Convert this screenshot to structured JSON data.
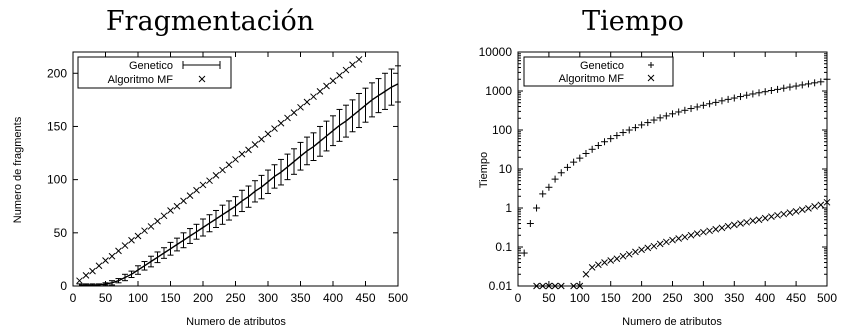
{
  "chart_data": [
    {
      "type": "line",
      "title": "Fragmentación",
      "xlabel": "Numero de atributos",
      "ylabel": "Numero de fragments",
      "xlim": [
        0,
        500
      ],
      "ylim": [
        0,
        220
      ],
      "xticks": [
        "0",
        "50",
        "100",
        "150",
        "200",
        "250",
        "300",
        "350",
        "400",
        "450",
        "500"
      ],
      "yticks": [
        "0",
        "50",
        "100",
        "150",
        "200"
      ],
      "legend": "top-left",
      "grid": false,
      "series": [
        {
          "name": "Genetico",
          "style": "line-with-errorbars",
          "x": [
            10,
            20,
            30,
            40,
            50,
            60,
            70,
            80,
            90,
            100,
            110,
            120,
            130,
            140,
            150,
            160,
            170,
            180,
            190,
            200,
            210,
            220,
            230,
            240,
            250,
            260,
            270,
            280,
            290,
            300,
            310,
            320,
            330,
            340,
            350,
            360,
            370,
            380,
            390,
            400,
            410,
            420,
            430,
            440,
            450,
            460,
            470,
            480,
            490,
            500
          ],
          "y": [
            1,
            1,
            1,
            1,
            2,
            3,
            5,
            8,
            11,
            15,
            19,
            23,
            27,
            31,
            35,
            39,
            43,
            47,
            51,
            55,
            59,
            63,
            67,
            71,
            75,
            80,
            84,
            89,
            93,
            98,
            103,
            107,
            112,
            117,
            122,
            127,
            131,
            136,
            141,
            146,
            151,
            155,
            160,
            165,
            170,
            175,
            179,
            183,
            187,
            190
          ],
          "err": [
            1,
            1,
            1,
            1,
            1,
            2,
            2,
            3,
            3,
            4,
            4,
            5,
            5,
            5,
            6,
            6,
            7,
            7,
            7,
            8,
            8,
            8,
            9,
            9,
            9,
            10,
            10,
            10,
            11,
            11,
            11,
            12,
            12,
            12,
            13,
            13,
            13,
            14,
            14,
            14,
            15,
            15,
            15,
            16,
            16,
            16,
            16,
            17,
            17,
            17
          ]
        },
        {
          "name": "Algoritmo MF",
          "style": "x-markers",
          "x": [
            10,
            20,
            30,
            40,
            50,
            60,
            70,
            80,
            90,
            100,
            110,
            120,
            130,
            140,
            150,
            160,
            170,
            180,
            190,
            200,
            210,
            220,
            230,
            240,
            250,
            260,
            270,
            280,
            290,
            300,
            310,
            320,
            330,
            340,
            350,
            360,
            370,
            380,
            390,
            400,
            410,
            420,
            430,
            440
          ],
          "y": [
            5,
            10,
            14,
            19,
            24,
            28,
            33,
            38,
            43,
            47,
            52,
            56,
            61,
            66,
            71,
            75,
            80,
            85,
            90,
            95,
            99,
            104,
            109,
            114,
            119,
            124,
            128,
            133,
            138,
            143,
            148,
            153,
            158,
            163,
            168,
            173,
            178,
            183,
            188,
            193,
            198,
            203,
            208,
            213
          ]
        }
      ]
    },
    {
      "type": "scatter",
      "title": "Tiempo",
      "xlabel": "Numero de atributos",
      "ylabel": "Tiempo",
      "xlim": [
        0,
        500
      ],
      "ylim": [
        0.01,
        10000
      ],
      "yscale": "log",
      "xticks": [
        "0",
        "50",
        "100",
        "150",
        "200",
        "250",
        "300",
        "350",
        "400",
        "450",
        "500"
      ],
      "yticks": [
        "0.01",
        "0.1",
        "1",
        "10",
        "100",
        "1000",
        "10000"
      ],
      "legend": "top-left",
      "grid": false,
      "series": [
        {
          "name": "Genetico",
          "style": "plus-markers",
          "x": [
            10,
            20,
            30,
            40,
            50,
            60,
            70,
            80,
            90,
            100,
            110,
            120,
            130,
            140,
            150,
            160,
            170,
            180,
            190,
            200,
            210,
            220,
            230,
            240,
            250,
            260,
            270,
            280,
            290,
            300,
            310,
            320,
            330,
            340,
            350,
            360,
            370,
            380,
            390,
            400,
            410,
            420,
            430,
            440,
            450,
            460,
            470,
            480,
            490,
            500
          ],
          "y": [
            0.07,
            0.4,
            1.0,
            2.3,
            3.4,
            5.5,
            8,
            11,
            15,
            19,
            25,
            32,
            40,
            50,
            60,
            72,
            86,
            100,
            115,
            135,
            155,
            180,
            205,
            230,
            260,
            290,
            320,
            355,
            390,
            430,
            470,
            510,
            560,
            610,
            660,
            720,
            780,
            840,
            900,
            960,
            1030,
            1100,
            1180,
            1260,
            1340,
            1430,
            1520,
            1620,
            1720,
            2000
          ]
        },
        {
          "name": "Algoritmo MF",
          "style": "x-markers",
          "x": [
            30,
            40,
            50,
            60,
            70,
            90,
            100,
            110,
            120,
            130,
            140,
            150,
            160,
            170,
            180,
            190,
            200,
            210,
            220,
            230,
            240,
            250,
            260,
            270,
            280,
            290,
            300,
            310,
            320,
            330,
            340,
            350,
            360,
            370,
            380,
            390,
            400,
            410,
            420,
            430,
            440,
            450,
            460,
            470,
            480,
            490,
            500
          ],
          "y": [
            0.01,
            0.01,
            0.01,
            0.01,
            0.01,
            0.01,
            0.01,
            0.02,
            0.03,
            0.035,
            0.04,
            0.045,
            0.05,
            0.058,
            0.065,
            0.075,
            0.085,
            0.095,
            0.105,
            0.12,
            0.135,
            0.15,
            0.165,
            0.18,
            0.2,
            0.22,
            0.24,
            0.26,
            0.285,
            0.31,
            0.34,
            0.37,
            0.4,
            0.43,
            0.47,
            0.5,
            0.55,
            0.6,
            0.65,
            0.7,
            0.76,
            0.82,
            0.9,
            0.98,
            1.1,
            1.2,
            1.4
          ]
        }
      ]
    }
  ]
}
